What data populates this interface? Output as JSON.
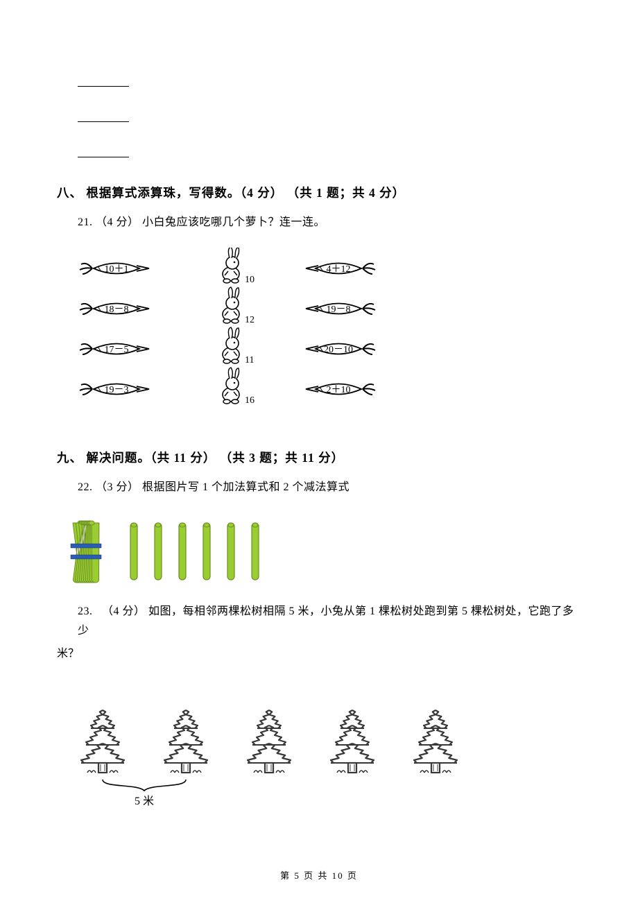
{
  "colors": {
    "text": "#000000",
    "bg": "#ffffff",
    "stick_fill": "#9acd32",
    "stick_stroke": "#6b8e23",
    "bundle_band": "#2a5db0",
    "tree_stroke_dark": "#383838",
    "tree_stroke_light": "#666666"
  },
  "sections": {
    "s8": {
      "label": "八、",
      "title": "根据算式添算珠，写得数。（4 分）  （共 1 题；共 4 分）"
    },
    "s9": {
      "label": "九、",
      "title": "解决问题。（共 11 分）  （共 3 题；共 11 分）"
    }
  },
  "q21": {
    "number": "21.",
    "points": "（4 分）",
    "text": "小白兔应该吃哪几个萝卜？连一连。",
    "carrots_left": [
      "10＋1",
      "18－8",
      "17－5",
      "19－3"
    ],
    "carrots_right": [
      "4＋12",
      "19－8",
      "20－10",
      "2＋10"
    ],
    "rabbits": [
      "10",
      "12",
      "11",
      "16"
    ]
  },
  "q22": {
    "number": "22.",
    "points": "（3 分）",
    "text": "根据图片写 1 个加法算式和 2 个减法算式",
    "bundle_count": 10,
    "loose_count": 6,
    "stick": {
      "width": 10,
      "height": 82,
      "gap": 25
    }
  },
  "q23": {
    "number": "23.",
    "points": "（4 分）",
    "text_a": "如图，每相邻两棵松树相隔 5 米，小兔从第 1 棵松树处跑到第 5 棵松树处，它跑了多少",
    "text_b": "米？",
    "tree_count": 5,
    "gap_label": "5 米"
  },
  "footer": "第 5 页 共 10 页"
}
